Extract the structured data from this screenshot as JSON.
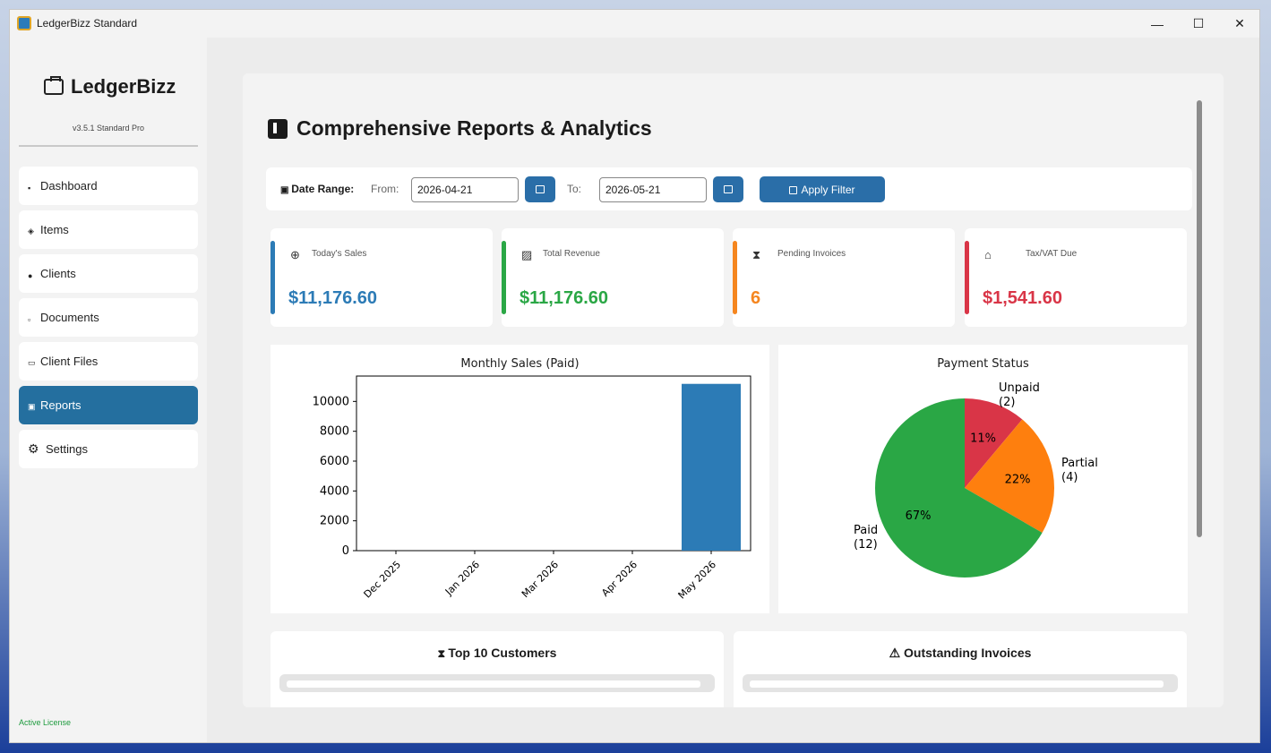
{
  "window": {
    "title": "LedgerBizz Standard",
    "controls": {
      "minimize": "—",
      "maximize": "☐",
      "close": "✕"
    }
  },
  "sidebar": {
    "brand": "LedgerBizz",
    "version": "v3.5.1 Standard Pro",
    "items": [
      {
        "label": "Dashboard",
        "icon": "dashboard-icon",
        "glyph": "▪"
      },
      {
        "label": "Items",
        "icon": "box-icon",
        "glyph": "◈"
      },
      {
        "label": "Clients",
        "icon": "users-icon",
        "glyph": "●"
      },
      {
        "label": "Documents",
        "icon": "document-icon",
        "glyph": "▫"
      },
      {
        "label": "Client Files",
        "icon": "folder-icon",
        "glyph": "▭"
      },
      {
        "label": "Reports",
        "icon": "chart-icon",
        "glyph": "▣"
      },
      {
        "label": "Settings",
        "icon": "gear-icon",
        "glyph": "⚙"
      }
    ],
    "active_item": "Reports",
    "license": "Active License"
  },
  "reports": {
    "title": "Comprehensive Reports & Analytics",
    "filter": {
      "date_range_label": "Date Range:",
      "from_label": "From:",
      "from_value": "2026-04-21",
      "to_label": "To:",
      "to_value": "2026-05-21",
      "apply_label": "Apply Filter"
    },
    "stats": [
      {
        "label": "Today's Sales",
        "value": "$11,176.60",
        "color": "#2c7bb6",
        "icon": "money-bag-icon",
        "glyph": "⊕"
      },
      {
        "label": "Total Revenue",
        "value": "$11,176.60",
        "color": "#2aa745",
        "icon": "chart-icon",
        "glyph": "▨"
      },
      {
        "label": "Pending Invoices",
        "value": "6",
        "color": "#f5861f",
        "icon": "hourglass-icon",
        "glyph": "⧗"
      },
      {
        "label": "Tax/VAT Due",
        "value": "$1,541.60",
        "color": "#d93547",
        "icon": "bank-icon",
        "glyph": "⌂"
      }
    ],
    "top_customers_title": "Top 10 Customers",
    "outstanding_title": "Outstanding Invoices"
  },
  "chart_data": [
    {
      "type": "bar",
      "title": "Monthly Sales (Paid)",
      "categories": [
        "Dec 2025",
        "Jan 2026",
        "Mar 2026",
        "Apr 2026",
        "May 2026"
      ],
      "values": [
        0,
        0,
        0,
        0,
        11176.6
      ],
      "ylim": [
        0,
        11700
      ],
      "yticks": [
        "0",
        "2000",
        "4000",
        "6000",
        "8000",
        "10000"
      ],
      "color": "#2c7bb6"
    },
    {
      "type": "pie",
      "title": "Payment Status",
      "slices": [
        {
          "label": "Unpaid",
          "count": "(2)",
          "value": 2,
          "pct": "11%",
          "color": "#d93547"
        },
        {
          "label": "Partial",
          "count": "(4)",
          "value": 4,
          "pct": "22%",
          "color": "#fe7f0e"
        },
        {
          "label": "Paid",
          "count": "(12)",
          "value": 12,
          "pct": "67%",
          "color": "#2aa745"
        }
      ]
    }
  ]
}
